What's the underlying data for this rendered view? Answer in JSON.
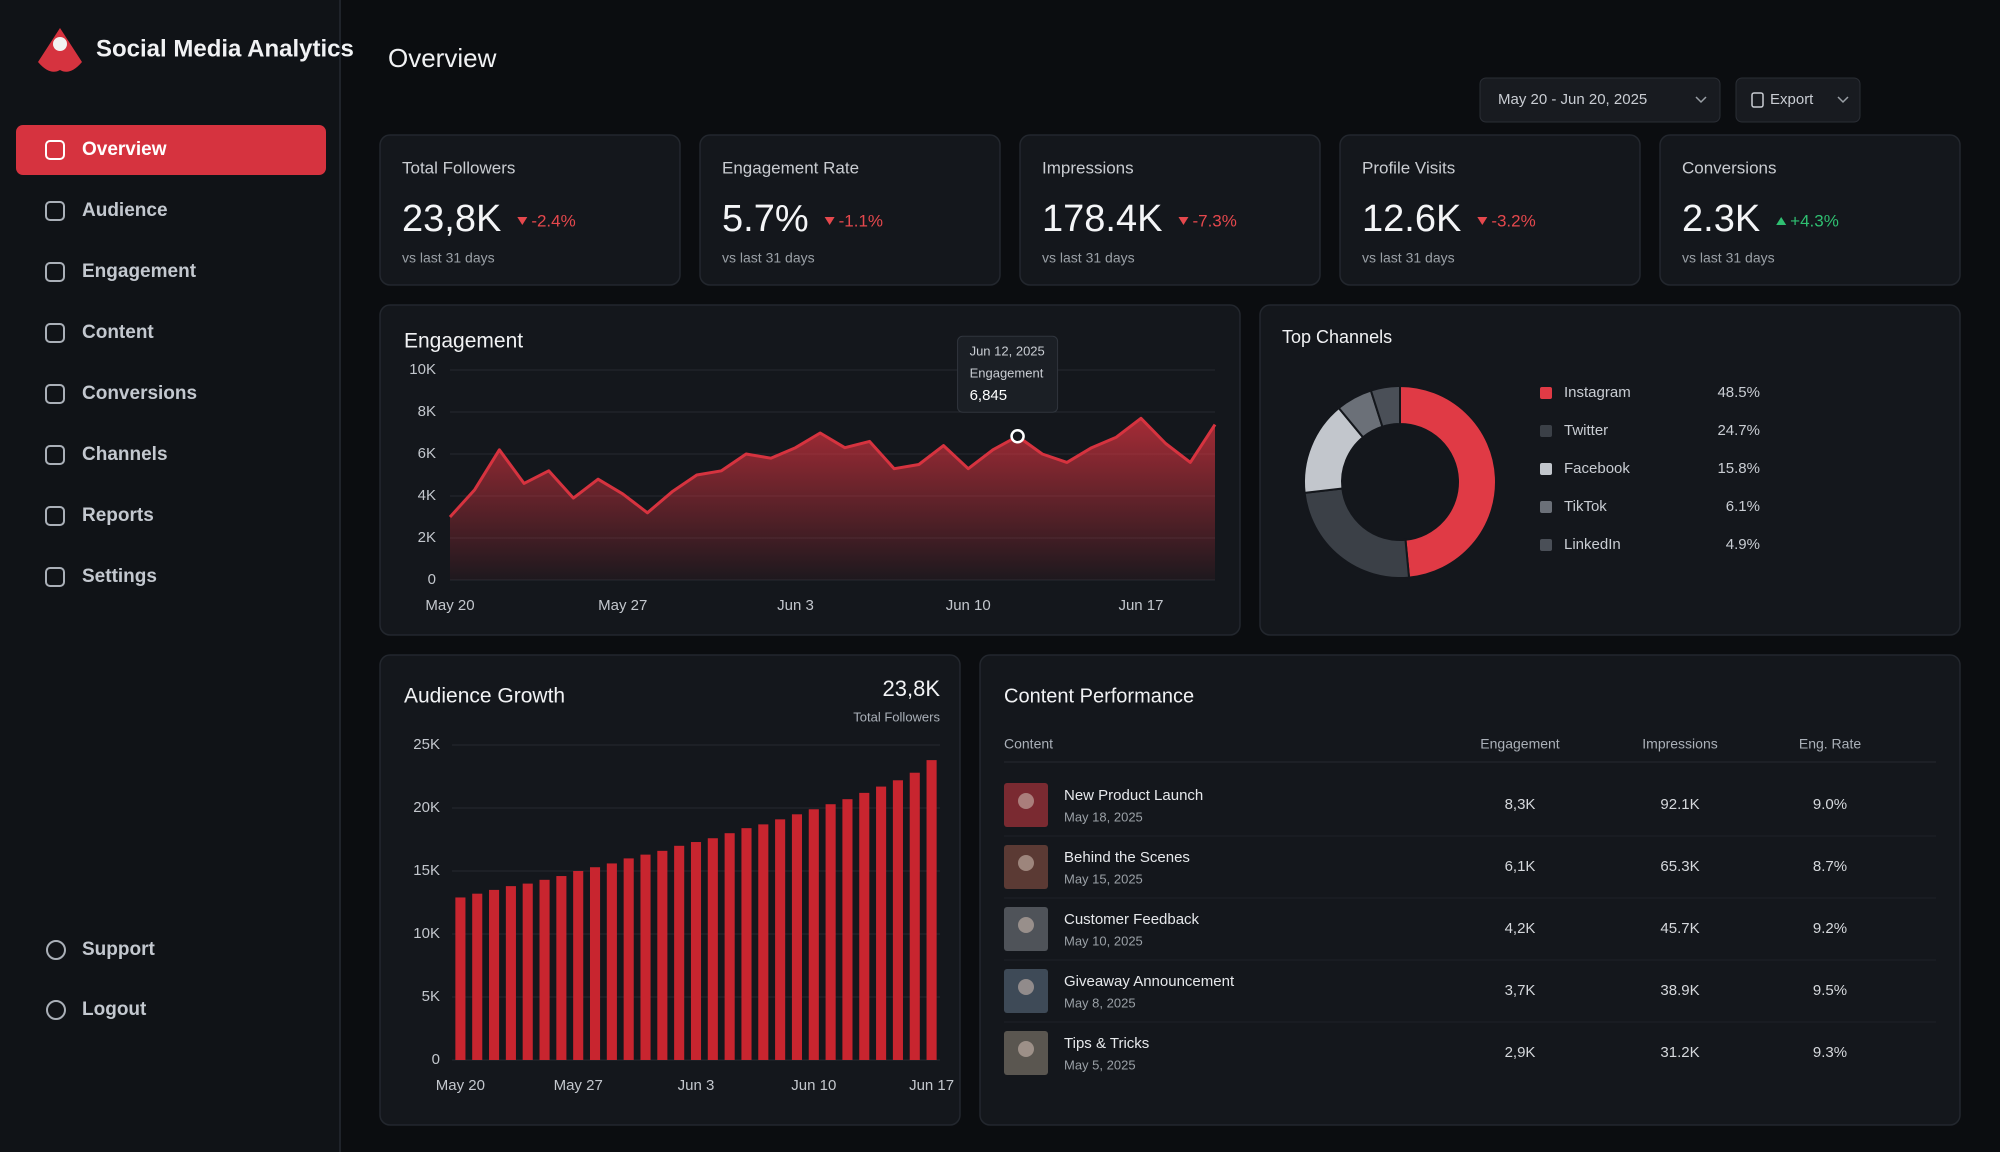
{
  "sidebar": {
    "brand": "Social Media Analytics",
    "nav": [
      {
        "label": "Overview",
        "active": true
      },
      {
        "label": "Audience"
      },
      {
        "label": "Engagement"
      },
      {
        "label": "Content"
      },
      {
        "label": "Conversions"
      },
      {
        "label": "Channels"
      },
      {
        "label": "Reports"
      },
      {
        "label": "Settings"
      }
    ],
    "footer_nav": [
      "Support",
      "Logout"
    ]
  },
  "header": {
    "title": "Overview",
    "date_range": "May 20 - Jun 20, 2025",
    "export": "Export"
  },
  "kpis": [
    {
      "label": "Total Followers",
      "value": "23,8K",
      "change": "-2.4%",
      "note": "vs last 31 days",
      "color": "#e5484d"
    },
    {
      "label": "Engagement Rate",
      "value": "5.7%",
      "change": "-1.1%",
      "note": "vs last 31 days",
      "color": "#e5484d"
    },
    {
      "label": "Impressions",
      "value": "178.4K",
      "change": "-7.3%",
      "note": "vs last 31 days",
      "color": "#e5484d"
    },
    {
      "label": "Profile Visits",
      "value": "12.6K",
      "change": "-3.2%",
      "note": "vs last 31 days",
      "color": "#e5484d"
    },
    {
      "label": "Conversions",
      "value": "2.3K",
      "change": "+4.3%",
      "note": "vs last 31 days",
      "color": "#2fbf71"
    }
  ],
  "chart_data": [
    {
      "type": "area",
      "title": "Engagement",
      "tooltip_title": "Jun 12, 2025",
      "categories": [
        "May 20",
        null,
        null,
        null,
        null,
        null,
        null,
        "May 27",
        null,
        null,
        null,
        null,
        null,
        null,
        "Jun 3",
        null,
        null,
        null,
        null,
        null,
        null,
        "Jun 10",
        null,
        null,
        null,
        null,
        null,
        null,
        "Jun 17",
        null,
        null,
        null
      ],
      "series": [
        {
          "name": "Engagement",
          "color": "#d6333f",
          "values": [
            3000,
            4300,
            6200,
            4600,
            5200,
            3900,
            4800,
            4100,
            3200,
            4200,
            5000,
            5200,
            6000,
            5800,
            6300,
            7000,
            6300,
            6600,
            5300,
            5500,
            6400,
            5300,
            6200,
            6845,
            6000,
            5600,
            6300,
            6800,
            7700,
            6500,
            5600,
            7400
          ],
          "value_labels": [
            null,
            null,
            null,
            null,
            null,
            null,
            null,
            null,
            null,
            null,
            null,
            null,
            null,
            null,
            null,
            null,
            null,
            null,
            null,
            null,
            null,
            null,
            null,
            "6,845",
            null,
            null,
            null,
            null,
            null,
            null,
            null,
            null
          ]
        }
      ],
      "ylim": [
        0,
        10000
      ],
      "yticks": [
        0,
        {
          "value": 2000,
          "label": "2K"
        },
        {
          "value": 4000,
          "label": "4K"
        },
        {
          "value": 6000,
          "label": "6K"
        },
        {
          "value": 8000,
          "label": "8K"
        },
        {
          "value": 10000,
          "label": "10K"
        }
      ],
      "grid": true
    },
    {
      "type": "donut",
      "title": "Top Channels",
      "categories": [
        "Instagram",
        "Twitter",
        "Facebook",
        "TikTok",
        "LinkedIn"
      ],
      "values": [
        48.5,
        24.7,
        15.8,
        6.1,
        4.9
      ],
      "value_labels": [
        "48.5%",
        "24.7%",
        "15.8%",
        "6.1%",
        "4.9%"
      ],
      "colors": [
        "#e03a45",
        "#3b4047",
        "#c2c6cc",
        "#6b7078",
        "#4a4f57"
      ]
    },
    {
      "type": "bar",
      "title": "Audience Growth",
      "headline": "23,8K",
      "headline_label": "Total Followers",
      "color": "#c8252f",
      "categories": [
        "May 20",
        null,
        null,
        null,
        null,
        null,
        null,
        "May 27",
        null,
        null,
        null,
        null,
        null,
        null,
        "Jun 3",
        null,
        null,
        null,
        null,
        null,
        null,
        "Jun 10",
        null,
        null,
        null,
        null,
        null,
        null,
        "Jun 17"
      ],
      "values": [
        12900,
        13200,
        13500,
        13800,
        14000,
        14300,
        14600,
        15000,
        15300,
        15600,
        16000,
        16300,
        16600,
        17000,
        17300,
        17600,
        18000,
        18400,
        18700,
        19100,
        19500,
        19900,
        20300,
        20700,
        21200,
        21700,
        22200,
        22800,
        23800
      ],
      "ylim": [
        0,
        25000
      ],
      "yticks": [
        0,
        {
          "value": 5000,
          "label": "5K"
        },
        {
          "value": 10000,
          "label": "10K"
        },
        {
          "value": 15000,
          "label": "15K"
        },
        {
          "value": 20000,
          "label": "20K"
        },
        {
          "value": 25000,
          "label": "25K"
        }
      ],
      "grid": true
    }
  ],
  "content_performance": {
    "title": "Content Performance",
    "columns": [
      "Content",
      "Engagement",
      "Impressions",
      "Eng. Rate"
    ],
    "rows": [
      [
        "New Product Launch",
        "May 18, 2025",
        "8,3K",
        "92.1K",
        "9.0%"
      ],
      [
        "Behind the Scenes",
        "May 15, 2025",
        "6,1K",
        "65.3K",
        "8.7%"
      ],
      [
        "Customer Feedback",
        "May 10, 2025",
        "4,2K",
        "45.7K",
        "9.2%"
      ],
      [
        "Giveaway Announcement",
        "May 8, 2025",
        "3,7K",
        "38.9K",
        "9.5%"
      ],
      [
        "Tips & Tricks",
        "May 5, 2025",
        "2,9K",
        "31.2K",
        "9.3%"
      ]
    ]
  }
}
